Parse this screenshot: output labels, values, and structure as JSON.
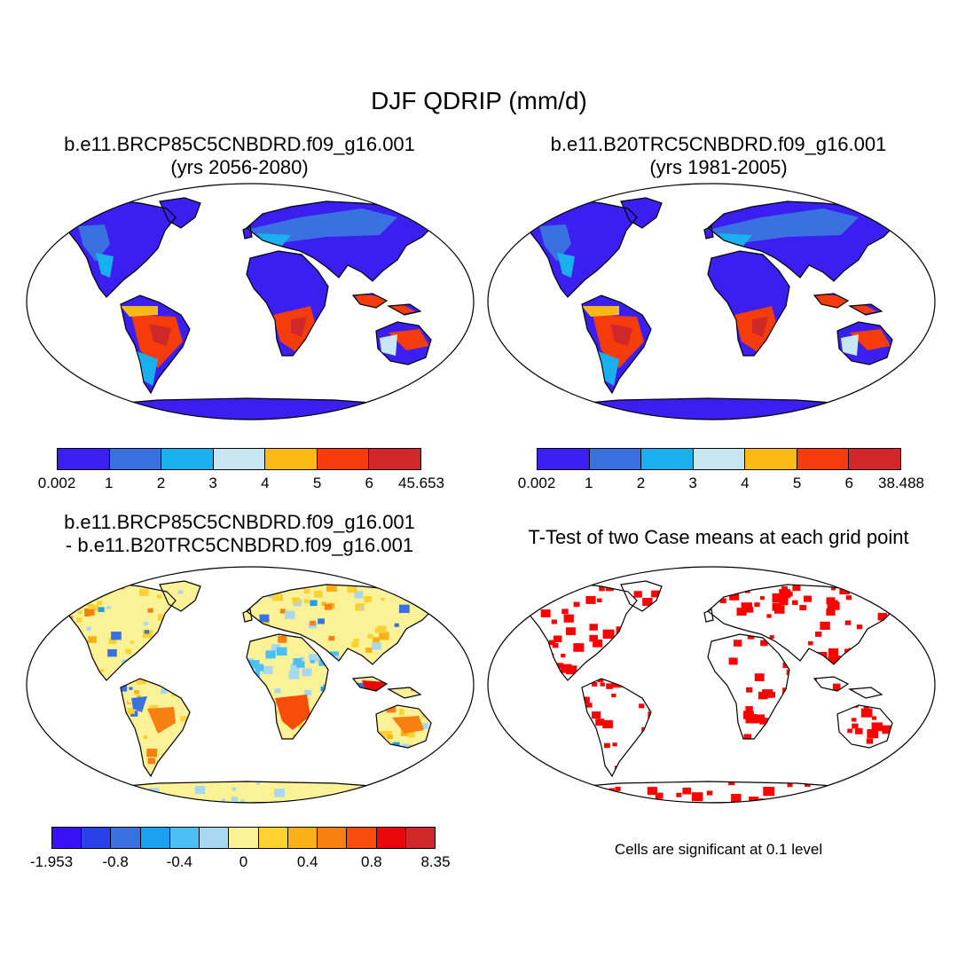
{
  "figure": {
    "title": "DJF QDRIP (mm/d)"
  },
  "panels": {
    "top_left": {
      "title_line1": "b.e11.BRCP85C5CNBDRD.f09_g16.001",
      "title_line2": "(yrs 2056-2080)",
      "colorbar": {
        "colors": [
          "#3a1ff0",
          "#3a71e0",
          "#1ab0f0",
          "#c6e6f4",
          "#fbb915",
          "#f53c0a",
          "#d0282a"
        ],
        "labels": [
          "0.002",
          "1",
          "2",
          "3",
          "4",
          "5",
          "6",
          "45.653"
        ]
      }
    },
    "top_right": {
      "title_line1": "b.e11.B20TRC5CNBDRD.f09_g16.001",
      "title_line2": "(yrs 1981-2005)",
      "colorbar": {
        "colors": [
          "#3a1ff0",
          "#3a71e0",
          "#1ab0f0",
          "#c6e6f4",
          "#fbb915",
          "#f53c0a",
          "#d0282a"
        ],
        "labels": [
          "0.002",
          "1",
          "2",
          "3",
          "4",
          "5",
          "6",
          "38.488"
        ]
      }
    },
    "bottom_left": {
      "title_line1": "b.e11.BRCP85C5CNBDRD.f09_g16.001",
      "title_line2": "- b.e11.B20TRC5CNBDRD.f09_g16.001",
      "colorbar": {
        "colors": [
          "#3a10f5",
          "#2a40e8",
          "#3a70e0",
          "#1aa0ef",
          "#4cc0f2",
          "#a8d8ef",
          "#fbf196",
          "#fcd230",
          "#fbb018",
          "#f88010",
          "#f84d0a",
          "#e8070a",
          "#d0282a"
        ],
        "labels": [
          "-1.953",
          "-0.8",
          "-0.4",
          "0",
          "0.4",
          "0.8",
          "8.35"
        ]
      }
    },
    "bottom_right": {
      "title": "T-Test of two Case means at each grid point",
      "note": "Cells are significant at 0.1 level",
      "sig_color": "#ff0000"
    }
  }
}
